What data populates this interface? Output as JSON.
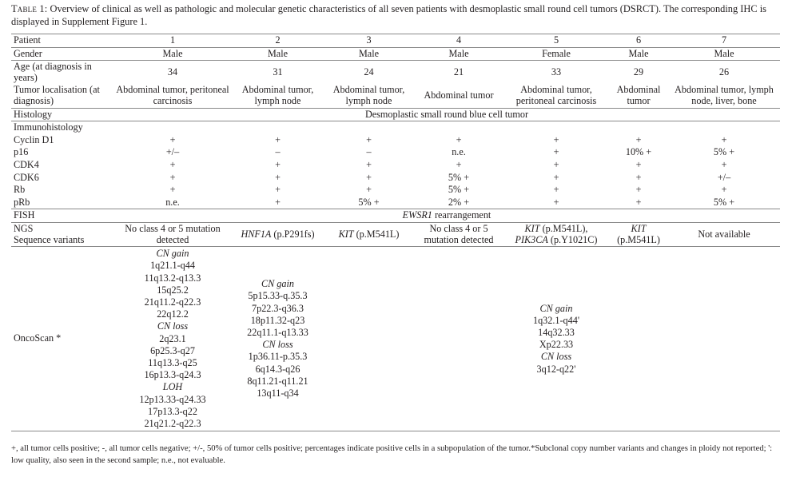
{
  "caption": {
    "label": "Table 1:",
    "text": "Overview of clinical as well as pathologic and molecular genetic characteristics of all seven patients with desmoplastic small round cell tumors (DSRCT). The corresponding IHC is displayed in Supplement Figure 1."
  },
  "header": {
    "label": "Patient",
    "patients": [
      "1",
      "2",
      "3",
      "4",
      "5",
      "6",
      "7"
    ]
  },
  "gender": {
    "label": "Gender",
    "values": [
      "Male",
      "Male",
      "Male",
      "Male",
      "Female",
      "Male",
      "Male"
    ]
  },
  "age": {
    "label": "Age (at diagnosis in years)",
    "values": [
      "34",
      "31",
      "24",
      "21",
      "33",
      "29",
      "26"
    ]
  },
  "localisation": {
    "label": "Tumor localisation (at diagnosis)",
    "values": [
      "Abdominal tumor, peritoneal carcinosis",
      "Abdominal tumor, lymph node",
      "Abdominal tumor, lymph node",
      "Abdominal tumor",
      "Abdominal tumor, peritoneal carcinosis",
      "Abdominal tumor",
      "Abdominal tumor, lymph node, liver, bone"
    ]
  },
  "histology": {
    "label": "Histology",
    "value": "Desmoplastic small round blue cell tumor"
  },
  "immuno": {
    "label": "Immunohistology",
    "rows": [
      {
        "label": "Cyclin D1",
        "values": [
          "+",
          "+",
          "+",
          "+",
          "+",
          "+",
          "+"
        ]
      },
      {
        "label": "p16",
        "values": [
          "+/–",
          "–",
          "–",
          "n.e.",
          "+",
          "10% +",
          "5% +"
        ]
      },
      {
        "label": "CDK4",
        "values": [
          "+",
          "+",
          "+",
          "+",
          "+",
          "+",
          "+"
        ]
      },
      {
        "label": "CDK6",
        "values": [
          "+",
          "+",
          "+",
          "5% +",
          "+",
          "+",
          "+/–"
        ]
      },
      {
        "label": "Rb",
        "values": [
          "+",
          "+",
          "+",
          "5% +",
          "+",
          "+",
          "+"
        ]
      },
      {
        "label": "pRb",
        "values": [
          "n.e.",
          "+",
          "5% +",
          "2% +",
          "+",
          "+",
          "5% +"
        ]
      }
    ]
  },
  "fish": {
    "label": "FISH",
    "gene": "EWSR1",
    "text": " rearrangement"
  },
  "ngs": {
    "label1": "NGS",
    "label2": "Sequence variants",
    "p1": "No class 4 or 5 mutation detected",
    "p2_gene": "HNF1A",
    "p2_var": " (p.P291fs)",
    "p3_gene": "KIT",
    "p3_var": " (p.M541L)",
    "p4": "No class 4 or 5 mutation detected",
    "p5_gene1": "KIT",
    "p5_var1": " (p.M541L),",
    "p5_gene2": "PIK3CA",
    "p5_var2": " (p.Y1021C)",
    "p6_gene": "KIT",
    "p6_var": "(p.M541L)",
    "p7": "Not available"
  },
  "oncoscan": {
    "label": "OncoScan *",
    "p1": [
      {
        "t": "CN gain",
        "i": true
      },
      {
        "t": "1q21.1-q44"
      },
      {
        "t": "11q13.2-q13.3"
      },
      {
        "t": "15q25.2"
      },
      {
        "t": "21q11.2-q22.3"
      },
      {
        "t": "22q12.2"
      },
      {
        "t": "CN loss",
        "i": true
      },
      {
        "t": "2q23.1"
      },
      {
        "t": "6p25.3-q27"
      },
      {
        "t": "11q13.3-q25"
      },
      {
        "t": "16p13.3-q24.3"
      },
      {
        "t": "LOH",
        "i": true
      },
      {
        "t": "12p13.33-q24.33"
      },
      {
        "t": "17p13.3-q22"
      },
      {
        "t": "21q21.2-q22.3"
      }
    ],
    "p2": [
      {
        "t": "CN gain",
        "i": true
      },
      {
        "t": "5p15.33-q.35.3"
      },
      {
        "t": "7p22.3-q36.3"
      },
      {
        "t": "18p11.32-q23"
      },
      {
        "t": "22q11.1-q13.33"
      },
      {
        "t": "CN loss",
        "i": true
      },
      {
        "t": "1p36.11-p.35.3"
      },
      {
        "t": "6q14.3-q26"
      },
      {
        "t": "8q11.21-q11.21"
      },
      {
        "t": "13q11-q34"
      }
    ],
    "p5": [
      {
        "t": "CN gain",
        "i": true
      },
      {
        "t": "1q32.1-q44'"
      },
      {
        "t": "14q32.33"
      },
      {
        "t": "Xp22.33"
      },
      {
        "t": "CN loss",
        "i": true
      },
      {
        "t": "3q12-q22'"
      }
    ]
  },
  "footnote": "+, all tumor cells positive; -, all tumor cells negative; +/-, 50% of tumor cells positive; percentages indicate positive cells in a subpopulation of the tumor.*Subclonal copy number variants and changes in ploidy not reported; ': low quality, also seen in the second sample; n.e., not evaluable."
}
